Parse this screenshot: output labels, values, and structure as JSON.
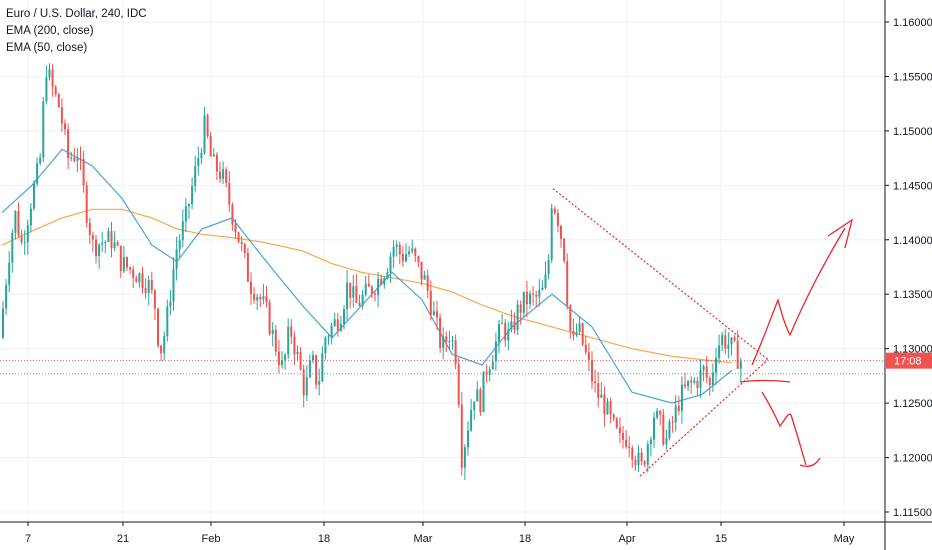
{
  "legend": {
    "symbol": "Euro / U.S. Dollar, 240, IDC",
    "ema200": "EMA (200, close)",
    "ema50": "EMA (50, close)"
  },
  "current_price_label": "17:08",
  "colors": {
    "up": "#26a69a",
    "down": "#ef5350",
    "ema200": "#f7a94c",
    "ema50": "#4aa3df",
    "price_line": "#ef5350",
    "drawing": "#e8282c",
    "grid": "#eef0f3",
    "axis": "#131722"
  },
  "chart_data": {
    "type": "candlestick",
    "title": "Euro / U.S. Dollar, 240, IDC",
    "x_tick_labels": [
      "7",
      "21",
      "Feb",
      "18",
      "Mar",
      "18",
      "Apr",
      "15",
      "May"
    ],
    "y_tick_labels": [
      "1.16000",
      "1.15500",
      "1.15000",
      "1.14500",
      "1.14000",
      "1.13500",
      "1.13000",
      "1.12500",
      "1.12000",
      "1.11500"
    ],
    "ylim": [
      1.1135,
      1.1635
    ],
    "grid": true,
    "last_price": 1.1289,
    "series": [
      {
        "name": "EMA (200, close)",
        "values": [
          1.1395,
          1.1408,
          1.142,
          1.1428,
          1.1428,
          1.142,
          1.141,
          1.1405,
          1.1402,
          1.1398,
          1.139,
          1.1378,
          1.137,
          1.1365,
          1.136,
          1.1352,
          1.134,
          1.133,
          1.132,
          1.131,
          1.13,
          1.1293,
          1.129,
          1.1287
        ]
      },
      {
        "name": "EMA (50, close)",
        "values": [
          1.1425,
          1.145,
          1.1483,
          1.1468,
          1.1438,
          1.1395,
          1.138,
          1.141,
          1.142,
          1.1385,
          1.134,
          1.131,
          1.134,
          1.137,
          1.1345,
          1.1295,
          1.1285,
          1.132,
          1.135,
          1.132,
          1.126,
          1.125,
          1.1258,
          1.128
        ]
      }
    ],
    "ema_x_index": [
      0,
      30,
      60,
      90,
      120,
      150,
      175,
      200,
      230,
      260,
      300,
      330,
      360,
      390,
      420,
      450,
      480,
      510,
      550,
      590,
      630,
      670,
      700,
      730
    ],
    "candle_path": [
      [
        0,
        1.131
      ],
      [
        8,
        1.138
      ],
      [
        15,
        1.1425
      ],
      [
        22,
        1.1395
      ],
      [
        32,
        1.144
      ],
      [
        40,
        1.147
      ],
      [
        46,
        1.156
      ],
      [
        52,
        1.154
      ],
      [
        60,
        1.152
      ],
      [
        68,
        1.1475
      ],
      [
        78,
        1.148
      ],
      [
        86,
        1.143
      ],
      [
        93,
        1.1395
      ],
      [
        102,
        1.1398
      ],
      [
        112,
        1.14
      ],
      [
        122,
        1.1378
      ],
      [
        135,
        1.137
      ],
      [
        148,
        1.136
      ],
      [
        155,
        1.134
      ],
      [
        160,
        1.1295
      ],
      [
        166,
        1.132
      ],
      [
        176,
        1.139
      ],
      [
        186,
        1.142
      ],
      [
        197,
        1.147
      ],
      [
        205,
        1.1505
      ],
      [
        212,
        1.147
      ],
      [
        222,
        1.146
      ],
      [
        232,
        1.1425
      ],
      [
        242,
        1.139
      ],
      [
        250,
        1.136
      ],
      [
        258,
        1.135
      ],
      [
        266,
        1.1335
      ],
      [
        275,
        1.1305
      ],
      [
        283,
        1.128
      ],
      [
        290,
        1.132
      ],
      [
        298,
        1.129
      ],
      [
        305,
        1.126
      ],
      [
        312,
        1.129
      ],
      [
        318,
        1.1265
      ],
      [
        325,
        1.131
      ],
      [
        332,
        1.132
      ],
      [
        340,
        1.133
      ],
      [
        348,
        1.136
      ],
      [
        356,
        1.134
      ],
      [
        366,
        1.135
      ],
      [
        376,
        1.136
      ],
      [
        386,
        1.1375
      ],
      [
        394,
        1.1395
      ],
      [
        402,
        1.1385
      ],
      [
        410,
        1.139
      ],
      [
        418,
        1.1375
      ],
      [
        426,
        1.136
      ],
      [
        434,
        1.133
      ],
      [
        442,
        1.13
      ],
      [
        450,
        1.1315
      ],
      [
        457,
        1.129
      ],
      [
        462,
        1.12
      ],
      [
        468,
        1.123
      ],
      [
        474,
        1.126
      ],
      [
        480,
        1.125
      ],
      [
        486,
        1.128
      ],
      [
        494,
        1.13
      ],
      [
        502,
        1.132
      ],
      [
        510,
        1.131
      ],
      [
        518,
        1.1335
      ],
      [
        526,
        1.1345
      ],
      [
        534,
        1.1345
      ],
      [
        542,
        1.135
      ],
      [
        548,
        1.137
      ],
      [
        552,
        1.144
      ],
      [
        558,
        1.142
      ],
      [
        564,
        1.139
      ],
      [
        568,
        1.134
      ],
      [
        572,
        1.13
      ],
      [
        578,
        1.132
      ],
      [
        584,
        1.13
      ],
      [
        590,
        1.128
      ],
      [
        596,
        1.126
      ],
      [
        604,
        1.125
      ],
      [
        612,
        1.123
      ],
      [
        620,
        1.1215
      ],
      [
        628,
        1.122
      ],
      [
        636,
        1.12
      ],
      [
        642,
        1.119
      ],
      [
        648,
        1.1215
      ],
      [
        654,
        1.124
      ],
      [
        660,
        1.123
      ],
      [
        666,
        1.1215
      ],
      [
        672,
        1.123
      ],
      [
        680,
        1.1255
      ],
      [
        688,
        1.1265
      ],
      [
        696,
        1.127
      ],
      [
        704,
        1.128
      ],
      [
        710,
        1.1265
      ],
      [
        716,
        1.13
      ],
      [
        722,
        1.131
      ],
      [
        728,
        1.1305
      ],
      [
        734,
        1.1298
      ],
      [
        740,
        1.1289
      ]
    ]
  }
}
